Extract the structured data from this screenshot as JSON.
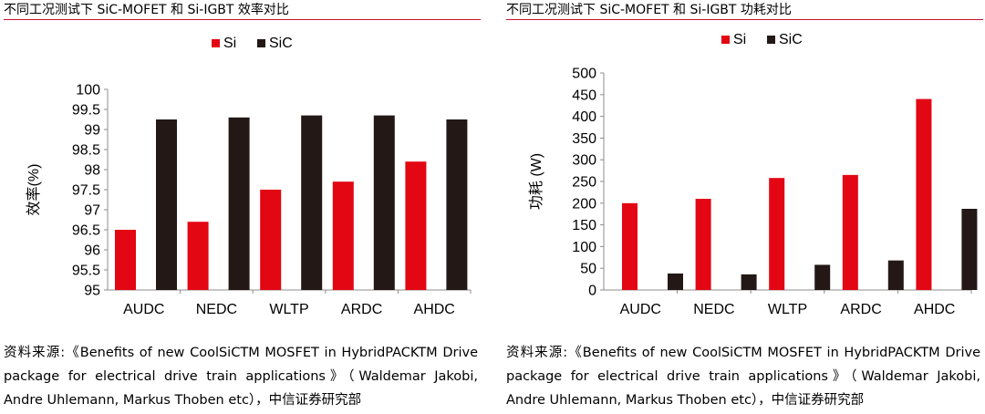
{
  "panels": [
    {
      "title": "不同工况测试下 SiC-MOFET 和 Si-IGBT 效率对比",
      "source": "资料来源:《Benefits of new CoolSiCTM MOSFET in HybridPACKTM Drive package for electrical drive train applications》（Waldemar Jakobi, Andre Uhlemann, Markus Thoben etc），中信证券研究部"
    },
    {
      "title": "不同工况测试下 SiC-MOFET 和 Si-IGBT 功耗对比",
      "source": "资料来源:《Benefits of new CoolSiCTM MOSFET in HybridPACKTM Drive package for electrical drive train applications》（Waldemar Jakobi, Andre Uhlemann, Markus Thoben etc），中信证券研究部"
    }
  ],
  "colors": {
    "Si": "#e30613",
    "SiC": "#231815",
    "accent": "#c8102e"
  },
  "chart_data": [
    {
      "type": "bar",
      "title": "不同工况测试下 SiC-MOFET 和 Si-IGBT 效率对比",
      "categories": [
        "AUDC",
        "NEDC",
        "WLTP",
        "ARDC",
        "AHDC"
      ],
      "series": [
        {
          "name": "Si",
          "values": [
            96.5,
            96.7,
            97.5,
            97.7,
            98.2
          ]
        },
        {
          "name": "SiC",
          "values": [
            99.25,
            99.3,
            99.35,
            99.35,
            99.25
          ]
        }
      ],
      "xlabel": "",
      "ylabel": "效率(%)",
      "ylim": [
        95,
        100
      ],
      "yticks": [
        95,
        95.5,
        96,
        96.5,
        97,
        97.5,
        98,
        98.5,
        99,
        99.5,
        100
      ],
      "ytick_labels": [
        "95",
        "95.5",
        "96",
        "96.5",
        "97",
        "97.5",
        "98",
        "98.5",
        "99",
        "99.5",
        "100"
      ],
      "grid": false,
      "legend": "top-center"
    },
    {
      "type": "bar",
      "title": "不同工况测试下 SiC-MOFET 和 Si-IGBT 功耗对比",
      "categories": [
        "AUDC",
        "NEDC",
        "WLTP",
        "ARDC",
        "AHDC"
      ],
      "series": [
        {
          "name": "Si",
          "values": [
            200,
            210,
            258,
            265,
            440
          ]
        },
        {
          "name": "SiC",
          "values": [
            38,
            36,
            58,
            68,
            187
          ]
        }
      ],
      "xlabel": "",
      "ylabel": "功耗 (W)",
      "ylim": [
        0,
        500
      ],
      "yticks": [
        0,
        50,
        100,
        150,
        200,
        250,
        300,
        350,
        400,
        450,
        500
      ],
      "ytick_labels": [
        "0",
        "50",
        "100",
        "150",
        "200",
        "250",
        "300",
        "350",
        "400",
        "450",
        "500"
      ],
      "grid": false,
      "legend": "top-center"
    }
  ]
}
